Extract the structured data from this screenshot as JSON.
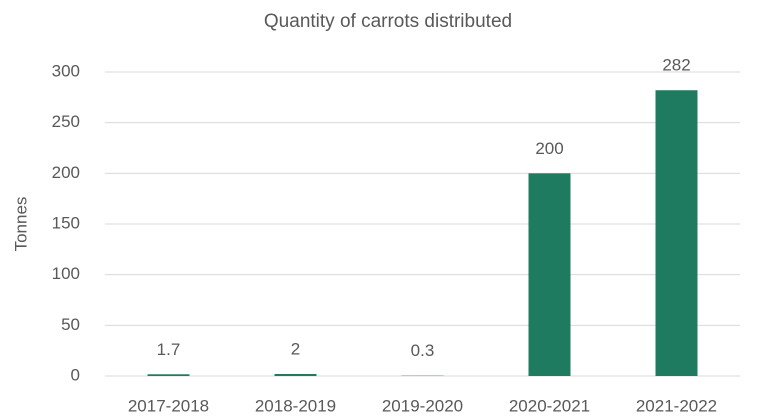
{
  "chart_data": {
    "type": "bar",
    "title": "Quantity of carrots distributed",
    "y_label": "Tonnes",
    "categories": [
      "2017-2018",
      "2018-2019",
      "2019-2020",
      "2020-2021",
      "2021-2022"
    ],
    "values": [
      1.7,
      2,
      0.3,
      200,
      282
    ],
    "color": "#1f7b5f",
    "ylim": [
      0,
      300
    ],
    "yticks": [
      0,
      50,
      100,
      150,
      200,
      250,
      300
    ],
    "grid": true
  }
}
